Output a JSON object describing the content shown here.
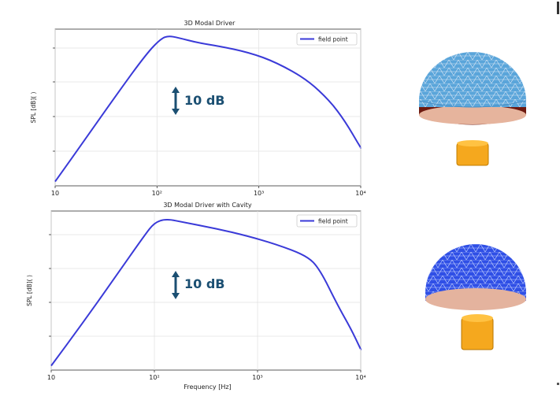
{
  "chart_data": [
    {
      "type": "line",
      "title": "3D Modal Driver",
      "ylabel": "SPL [dB]( )",
      "xlabel": "",
      "xscale": "log",
      "xlim": [
        10,
        10000
      ],
      "x_ticks": [
        "10",
        "10²",
        "10³",
        "10⁴"
      ],
      "grid": true,
      "legend_position": "top-right",
      "annotation": "10 dB",
      "series": [
        {
          "name": "field point",
          "color": "#3a3ad8",
          "x": [
            10,
            20,
            40,
            80,
            110,
            130,
            160,
            250,
            400,
            800,
            1500,
            3000,
            5000,
            7000,
            10000
          ],
          "y": [
            0,
            10.2,
            20.5,
            30.4,
            33.8,
            34.4,
            34.0,
            32.8,
            32.0,
            30.5,
            28.1,
            24.0,
            19.0,
            14.3,
            8.0
          ]
        }
      ]
    },
    {
      "type": "line",
      "title": "3D Modal Driver with Cavity",
      "ylabel": "SPL [dB]( )",
      "xlabel": "Frequency [Hz]",
      "xscale": "log",
      "xlim": [
        10,
        10000
      ],
      "x_ticks": [
        "10",
        "10²",
        "10³",
        "10⁴"
      ],
      "grid": true,
      "legend_position": "top-right",
      "annotation": "10 dB",
      "series": [
        {
          "name": "field point",
          "color": "#3a3ad8",
          "x": [
            10,
            20,
            40,
            80,
            100,
            130,
            200,
            400,
            800,
            1500,
            3000,
            4000,
            6000,
            8000,
            10000
          ],
          "y": [
            0,
            9.8,
            20.0,
            30.3,
            33.3,
            34.2,
            33.3,
            31.9,
            30.2,
            28.3,
            25.6,
            22.5,
            14.0,
            8.7,
            3.8
          ]
        }
      ]
    }
  ]
}
